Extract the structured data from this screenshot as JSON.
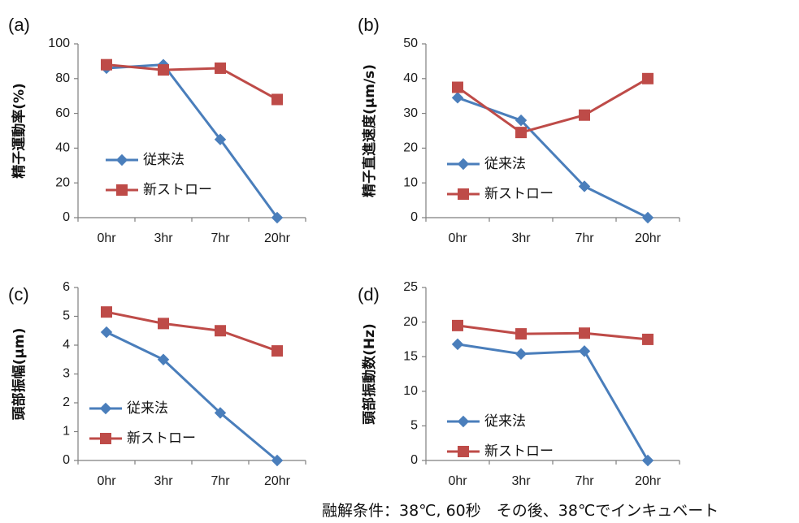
{
  "footnote": "融解条件：38℃, 60秒　その後、38℃でインキュベート",
  "colors": {
    "conventional": "#4a7ebb",
    "new_straw": "#be4b48",
    "axis": "#7f7f7f"
  },
  "chart_data": [
    {
      "panel": "(a)",
      "type": "line",
      "categories": [
        "0hr",
        "3hr",
        "7hr",
        "20hr"
      ],
      "ylabel": "精子運動率(%)",
      "ylim": [
        0,
        100
      ],
      "yticks": [
        0,
        20,
        40,
        60,
        80,
        100
      ],
      "legend_position": "center-left",
      "series": [
        {
          "name": "従来法",
          "marker": "diamond",
          "values": [
            86,
            88,
            45,
            0
          ]
        },
        {
          "name": "新ストロー",
          "marker": "square",
          "values": [
            88,
            85,
            86,
            68
          ]
        }
      ]
    },
    {
      "panel": "(b)",
      "type": "line",
      "categories": [
        "0hr",
        "3hr",
        "7hr",
        "20hr"
      ],
      "ylabel": "精子直進速度(μm/s)",
      "ylim": [
        0,
        50
      ],
      "yticks": [
        0,
        10,
        20,
        30,
        40,
        50
      ],
      "legend_position": "center-left",
      "series": [
        {
          "name": "従来法",
          "marker": "diamond",
          "values": [
            34.5,
            28,
            9,
            0
          ]
        },
        {
          "name": "新ストロー",
          "marker": "square",
          "values": [
            37.5,
            24.5,
            29.5,
            40
          ]
        }
      ]
    },
    {
      "panel": "(c)",
      "type": "line",
      "categories": [
        "0hr",
        "3hr",
        "7hr",
        "20hr"
      ],
      "ylabel": "頭部振幅(μm)",
      "ylim": [
        0,
        6
      ],
      "yticks": [
        0,
        1,
        2,
        3,
        4,
        5,
        6
      ],
      "legend_position": "lower-left",
      "series": [
        {
          "name": "従来法",
          "marker": "diamond",
          "values": [
            4.45,
            3.5,
            1.65,
            0
          ]
        },
        {
          "name": "新ストロー",
          "marker": "square",
          "values": [
            5.15,
            4.75,
            4.5,
            3.8
          ]
        }
      ]
    },
    {
      "panel": "(d)",
      "type": "line",
      "categories": [
        "0hr",
        "3hr",
        "7hr",
        "20hr"
      ],
      "ylabel": "頭部振動数(Hz)",
      "ylim": [
        0,
        25
      ],
      "yticks": [
        0,
        5,
        10,
        15,
        20,
        25
      ],
      "legend_position": "lower-left",
      "series": [
        {
          "name": "従来法",
          "marker": "diamond",
          "values": [
            16.8,
            15.4,
            15.8,
            0
          ]
        },
        {
          "name": "新ストロー",
          "marker": "square",
          "values": [
            19.5,
            18.3,
            18.4,
            17.5
          ]
        }
      ]
    }
  ]
}
